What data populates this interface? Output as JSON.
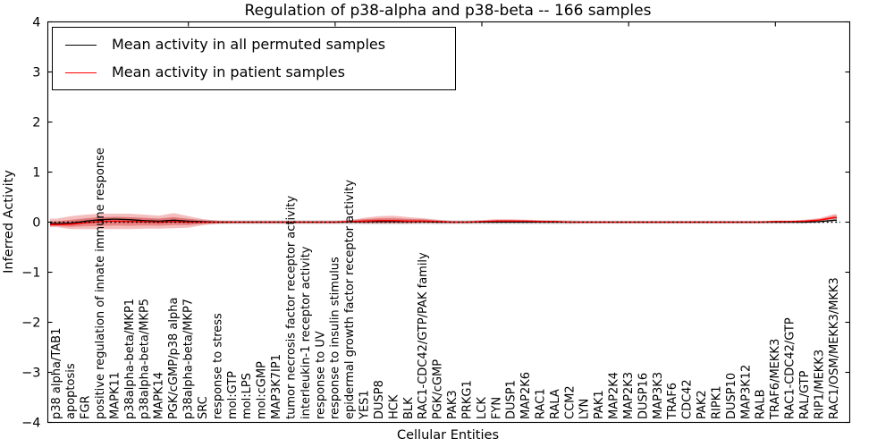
{
  "title": "Regulation of p38-alpha and p38-beta -- 166 samples",
  "chart_data": {
    "type": "line",
    "title": "Regulation of p38-alpha and p38-beta -- 166 samples",
    "xlabel": "Cellular Entities",
    "ylabel": "Inferred Activity",
    "ylim": [
      -4,
      4
    ],
    "y_ticks": [
      4,
      3,
      2,
      1,
      0,
      -1,
      -2,
      -3,
      -4
    ],
    "x_major_tick_positions": [
      10,
      20,
      30,
      40,
      50
    ],
    "grid": false,
    "legend_position": "upper-left-inside",
    "zero_reference_line": 0,
    "categories": [
      "p38 alpha/TAB1",
      "apoptosis",
      "FGR",
      "positive regulation of innate immune response",
      "MAPK11",
      "p38alpha-beta/MKP1",
      "p38alpha-beta/MKP5",
      "MAPK14",
      "PGK/cGMP/p38 alpha",
      "p38alpha-beta/MKP7",
      "SRC",
      "response to stress",
      "mol:GTP",
      "mol:LPS",
      "mol:cGMP",
      "MAP3K7IP1",
      "tumor necrosis factor receptor activity",
      "interleukin-1 receptor activity",
      "response to UV",
      "response to insulin stimulus",
      "epidermal growth factor receptor activity",
      "YES1",
      "DUSP8",
      "HCK",
      "BLK",
      "RAC1-CDC42/GTP/PAK family",
      "PGK/cGMP",
      "PAK3",
      "PRKG1",
      "LCK",
      "FYN",
      "DUSP1",
      "MAP2K6",
      "RAC1",
      "RALA",
      "CCM2",
      "LYN",
      "PAK1",
      "MAP2K4",
      "MAP2K3",
      "DUSP16",
      "MAP3K3",
      "TRAF6",
      "CDC42",
      "PAK2",
      "RIPK1",
      "DUSP10",
      "MAP3K12",
      "RALB",
      "TRAF6/MEKK3",
      "RAC1-CDC42/GTP",
      "RAL/GTP",
      "RIP1/MEKK3",
      "RAC1/OSM/MEKK3/MKK3"
    ],
    "series": [
      {
        "name": "Mean activity in all permuted samples",
        "color": "#000000",
        "values": [
          -0.03,
          -0.02,
          0.02,
          0.05,
          0.06,
          0.05,
          0.03,
          0.02,
          0.04,
          0.02,
          0.01,
          0.0,
          0.0,
          0.0,
          0.0,
          0.0,
          0.0,
          0.0,
          0.0,
          0.0,
          0.0,
          0.01,
          0.01,
          0.01,
          0.01,
          0.01,
          0.0,
          0.0,
          0.0,
          0.0,
          0.0,
          0.0,
          0.0,
          0.0,
          0.0,
          0.0,
          0.0,
          0.0,
          0.0,
          0.0,
          0.0,
          0.0,
          0.0,
          0.0,
          0.0,
          0.0,
          0.0,
          0.0,
          0.0,
          0.0,
          0.0,
          0.0,
          0.01,
          0.04
        ]
      },
      {
        "name": "Mean activity in patient samples",
        "color": "#ff0000",
        "values": [
          -0.05,
          -0.04,
          -0.01,
          0.01,
          0.02,
          0.01,
          0.01,
          0.0,
          0.01,
          0.0,
          0.0,
          0.0,
          0.0,
          0.0,
          0.0,
          0.0,
          0.0,
          0.0,
          0.0,
          0.0,
          0.01,
          0.02,
          0.03,
          0.03,
          0.02,
          0.02,
          0.01,
          0.0,
          0.0,
          0.01,
          0.02,
          0.02,
          0.02,
          0.01,
          0.01,
          0.0,
          0.0,
          0.0,
          0.0,
          0.0,
          0.0,
          0.0,
          0.0,
          0.0,
          0.0,
          0.0,
          0.0,
          0.0,
          0.0,
          0.01,
          0.01,
          0.02,
          0.04,
          0.09
        ]
      }
    ],
    "bands": [
      {
        "name": "patient activity spread",
        "color": "#dc2828",
        "upper": [
          0.07,
          0.12,
          0.15,
          0.17,
          0.17,
          0.17,
          0.15,
          0.13,
          0.18,
          0.12,
          0.06,
          0.03,
          0.02,
          0.02,
          0.02,
          0.02,
          0.02,
          0.02,
          0.02,
          0.02,
          0.04,
          0.09,
          0.12,
          0.13,
          0.1,
          0.08,
          0.05,
          0.02,
          0.02,
          0.04,
          0.06,
          0.06,
          0.05,
          0.04,
          0.03,
          0.02,
          0.015,
          0.015,
          0.015,
          0.015,
          0.015,
          0.015,
          0.015,
          0.015,
          0.015,
          0.015,
          0.015,
          0.015,
          0.015,
          0.03,
          0.03,
          0.05,
          0.08,
          0.16
        ],
        "lower": [
          -0.1,
          -0.14,
          -0.14,
          -0.14,
          -0.14,
          -0.14,
          -0.13,
          -0.13,
          -0.12,
          -0.11,
          -0.06,
          -0.03,
          -0.02,
          -0.02,
          -0.02,
          -0.02,
          -0.02,
          -0.02,
          -0.02,
          -0.02,
          -0.01,
          -0.03,
          -0.03,
          -0.03,
          -0.03,
          -0.02,
          -0.02,
          -0.02,
          -0.02,
          -0.01,
          0.0,
          0.0,
          0.0,
          -0.01,
          -0.01,
          -0.015,
          -0.015,
          -0.015,
          -0.015,
          -0.015,
          -0.015,
          -0.015,
          -0.015,
          -0.015,
          -0.015,
          -0.015,
          -0.015,
          -0.015,
          -0.015,
          -0.01,
          -0.01,
          0.0,
          0.02,
          0.06
        ]
      },
      {
        "name": "permuted activity spread",
        "color": "#bbbbbb",
        "half_width": [
          0.04,
          0.05,
          0.05,
          0.05,
          0.05,
          0.05,
          0.05,
          0.05,
          0.05,
          0.05,
          0.04,
          0.04,
          0.04,
          0.04,
          0.04,
          0.04,
          0.04,
          0.04,
          0.04,
          0.04,
          0.045,
          0.05,
          0.05,
          0.05,
          0.05,
          0.05,
          0.045,
          0.04,
          0.04,
          0.04,
          0.04,
          0.04,
          0.04,
          0.04,
          0.04,
          0.04,
          0.03,
          0.03,
          0.03,
          0.03,
          0.03,
          0.03,
          0.03,
          0.03,
          0.03,
          0.03,
          0.03,
          0.03,
          0.03,
          0.03,
          0.03,
          0.03,
          0.03,
          0.035
        ]
      }
    ]
  }
}
